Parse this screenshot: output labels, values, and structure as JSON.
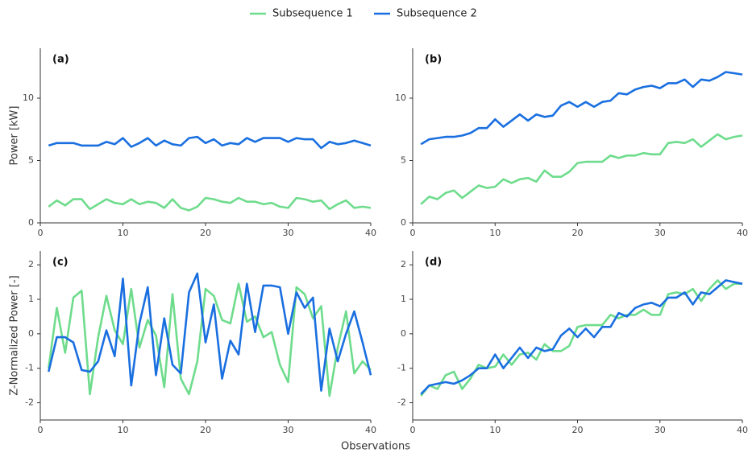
{
  "chart_data": [
    {
      "type": "line",
      "panel_label": "(a)",
      "ylabel": "Power [kW]",
      "legend": "top-center",
      "x": [
        1,
        2,
        3,
        4,
        5,
        6,
        7,
        8,
        9,
        10,
        11,
        12,
        13,
        14,
        15,
        16,
        17,
        18,
        19,
        20,
        21,
        22,
        23,
        24,
        25,
        26,
        27,
        28,
        29,
        30,
        31,
        32,
        33,
        34,
        35,
        36,
        37,
        38,
        39,
        40
      ],
      "xlim": [
        0,
        40
      ],
      "xticks": [
        0,
        10,
        20,
        30,
        40
      ],
      "ylim": [
        0,
        14
      ],
      "yticks": [
        0,
        5,
        10
      ],
      "series": [
        {
          "name": "Subsequence 1",
          "color": "#6edc8c",
          "values": [
            1.3,
            1.8,
            1.4,
            1.9,
            1.9,
            1.1,
            1.5,
            1.9,
            1.6,
            1.5,
            1.9,
            1.5,
            1.7,
            1.6,
            1.2,
            1.9,
            1.2,
            1.0,
            1.3,
            2.0,
            1.9,
            1.7,
            1.6,
            2.0,
            1.7,
            1.7,
            1.5,
            1.6,
            1.3,
            1.2,
            2.0,
            1.9,
            1.7,
            1.8,
            1.1,
            1.5,
            1.8,
            1.2,
            1.3,
            1.2
          ]
        },
        {
          "name": "Subsequence 2",
          "color": "#1a6fe0",
          "values": [
            6.2,
            6.4,
            6.4,
            6.4,
            6.2,
            6.2,
            6.2,
            6.5,
            6.3,
            6.8,
            6.1,
            6.4,
            6.8,
            6.2,
            6.6,
            6.3,
            6.2,
            6.8,
            6.9,
            6.4,
            6.7,
            6.2,
            6.4,
            6.3,
            6.8,
            6.5,
            6.8,
            6.8,
            6.8,
            6.5,
            6.8,
            6.7,
            6.7,
            6.0,
            6.5,
            6.3,
            6.4,
            6.6,
            6.4,
            6.2
          ]
        }
      ]
    },
    {
      "type": "line",
      "panel_label": "(b)",
      "x": [
        1,
        2,
        3,
        4,
        5,
        6,
        7,
        8,
        9,
        10,
        11,
        12,
        13,
        14,
        15,
        16,
        17,
        18,
        19,
        20,
        21,
        22,
        23,
        24,
        25,
        26,
        27,
        28,
        29,
        30,
        31,
        32,
        33,
        34,
        35,
        36,
        37,
        38,
        39,
        40
      ],
      "xlim": [
        0,
        40
      ],
      "xticks": [
        0,
        10,
        20,
        30,
        40
      ],
      "ylim": [
        0,
        14
      ],
      "yticks": [
        0,
        5,
        10
      ],
      "series": [
        {
          "color": "#6edc8c",
          "values": [
            1.5,
            2.1,
            1.9,
            2.4,
            2.6,
            2.0,
            2.5,
            3.0,
            2.8,
            2.9,
            3.5,
            3.2,
            3.5,
            3.6,
            3.3,
            4.2,
            3.7,
            3.7,
            4.1,
            4.8,
            4.9,
            4.9,
            4.9,
            5.4,
            5.2,
            5.4,
            5.4,
            5.6,
            5.5,
            5.5,
            6.4,
            6.5,
            6.4,
            6.7,
            6.1,
            6.6,
            7.1,
            6.7,
            6.9,
            7.0
          ]
        },
        {
          "color": "#1a6fe0",
          "values": [
            6.3,
            6.7,
            6.8,
            6.9,
            6.9,
            7.0,
            7.2,
            7.6,
            7.6,
            8.3,
            7.7,
            8.2,
            8.7,
            8.2,
            8.7,
            8.5,
            8.6,
            9.4,
            9.7,
            9.3,
            9.7,
            9.3,
            9.7,
            9.8,
            10.4,
            10.3,
            10.7,
            10.9,
            11.0,
            10.8,
            11.2,
            11.2,
            11.5,
            10.9,
            11.5,
            11.4,
            11.7,
            12.1,
            12.0,
            11.9
          ]
        }
      ]
    },
    {
      "type": "line",
      "panel_label": "(c)",
      "ylabel": "Z-Normalized Power [-]",
      "xlabel": "Observations",
      "x": [
        1,
        2,
        3,
        4,
        5,
        6,
        7,
        8,
        9,
        10,
        11,
        12,
        13,
        14,
        15,
        16,
        17,
        18,
        19,
        20,
        21,
        22,
        23,
        24,
        25,
        26,
        27,
        28,
        29,
        30,
        31,
        32,
        33,
        34,
        35,
        36,
        37,
        38,
        39,
        40
      ],
      "xlim": [
        0,
        40
      ],
      "xticks": [
        0,
        10,
        20,
        30,
        40
      ],
      "ylim": [
        -2.5,
        2.4
      ],
      "yticks": [
        -2,
        -1,
        0,
        1,
        2
      ],
      "series": [
        {
          "color": "#6edc8c",
          "values": [
            -1.0,
            0.75,
            -0.55,
            1.05,
            1.25,
            -1.75,
            -0.1,
            1.1,
            0.1,
            -0.3,
            1.3,
            -0.4,
            0.4,
            -0.05,
            -1.55,
            1.15,
            -1.3,
            -1.75,
            -0.8,
            1.3,
            1.1,
            0.4,
            0.3,
            1.45,
            0.35,
            0.5,
            -0.1,
            0.05,
            -0.9,
            -1.4,
            1.35,
            1.15,
            0.45,
            0.8,
            -1.8,
            -0.4,
            0.65,
            -1.15,
            -0.8,
            -1.05
          ]
        },
        {
          "color": "#1a6fe0",
          "values": [
            -1.1,
            -0.1,
            -0.1,
            -0.25,
            -1.05,
            -1.1,
            -0.8,
            0.1,
            -0.65,
            1.6,
            -1.5,
            0.3,
            1.35,
            -1.2,
            0.45,
            -0.9,
            -1.15,
            1.2,
            1.75,
            -0.25,
            0.85,
            -1.3,
            -0.2,
            -0.6,
            1.45,
            0.05,
            1.4,
            1.4,
            1.35,
            0.0,
            1.2,
            0.75,
            1.05,
            -1.65,
            0.15,
            -0.8,
            0.0,
            0.65,
            -0.25,
            -1.2
          ]
        }
      ]
    },
    {
      "type": "line",
      "panel_label": "(d)",
      "x": [
        1,
        2,
        3,
        4,
        5,
        6,
        7,
        8,
        9,
        10,
        11,
        12,
        13,
        14,
        15,
        16,
        17,
        18,
        19,
        20,
        21,
        22,
        23,
        24,
        25,
        26,
        27,
        28,
        29,
        30,
        31,
        32,
        33,
        34,
        35,
        36,
        37,
        38,
        39,
        40
      ],
      "xlim": [
        0,
        40
      ],
      "xticks": [
        0,
        10,
        20,
        30,
        40
      ],
      "ylim": [
        -2.5,
        2.4
      ],
      "yticks": [
        -2,
        -1,
        0,
        1,
        2
      ],
      "series": [
        {
          "color": "#6edc8c",
          "values": [
            -1.8,
            -1.5,
            -1.6,
            -1.2,
            -1.1,
            -1.6,
            -1.3,
            -0.9,
            -1.0,
            -0.95,
            -0.6,
            -0.9,
            -0.6,
            -0.55,
            -0.75,
            -0.3,
            -0.5,
            -0.5,
            -0.35,
            0.2,
            0.25,
            0.25,
            0.25,
            0.55,
            0.45,
            0.55,
            0.55,
            0.7,
            0.55,
            0.55,
            1.15,
            1.2,
            1.15,
            1.3,
            0.95,
            1.3,
            1.55,
            1.3,
            1.45,
            1.45
          ]
        },
        {
          "color": "#1a6fe0",
          "values": [
            -1.75,
            -1.5,
            -1.45,
            -1.4,
            -1.45,
            -1.35,
            -1.2,
            -1.0,
            -1.0,
            -0.6,
            -1.0,
            -0.7,
            -0.4,
            -0.7,
            -0.4,
            -0.5,
            -0.45,
            -0.05,
            0.15,
            -0.1,
            0.15,
            -0.1,
            0.2,
            0.2,
            0.6,
            0.5,
            0.75,
            0.85,
            0.9,
            0.8,
            1.05,
            1.05,
            1.2,
            0.85,
            1.2,
            1.15,
            1.35,
            1.55,
            1.5,
            1.45
          ]
        }
      ]
    }
  ]
}
